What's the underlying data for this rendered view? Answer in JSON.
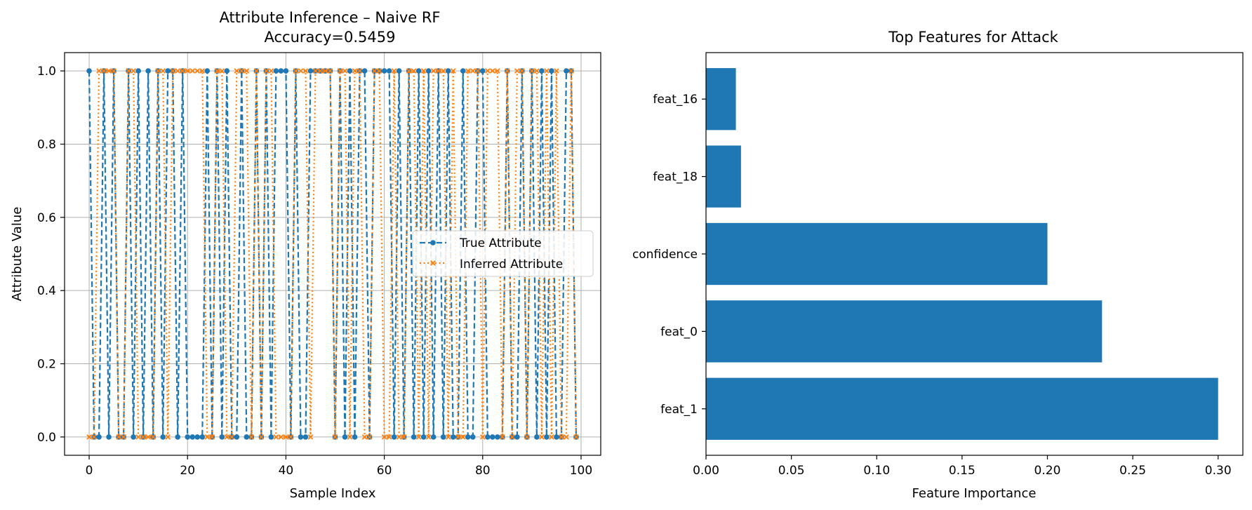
{
  "chart_data": [
    {
      "type": "line",
      "title": "Attribute Inference – Naive RF",
      "subtitle": "Accuracy=0.5459",
      "xlabel": "Sample Index",
      "ylabel": "Attribute Value",
      "xlim": [
        -5,
        104
      ],
      "ylim": [
        -0.05,
        1.05
      ],
      "xticks": [
        0,
        20,
        40,
        60,
        80,
        100
      ],
      "yticks": [
        0.0,
        0.2,
        0.4,
        0.6,
        0.8,
        1.0
      ],
      "grid": true,
      "legend_position": "center-right",
      "series": [
        {
          "name": "True Attribute",
          "color": "#1f77b4",
          "linestyle": "dashed",
          "marker": "circle",
          "values": [
            1,
            0,
            0,
            1,
            0,
            1,
            0,
            0,
            1,
            0,
            1,
            0,
            1,
            0,
            1,
            0,
            1,
            1,
            0,
            1,
            0,
            0,
            0,
            0,
            1,
            0,
            1,
            0,
            1,
            0,
            0,
            1,
            0,
            0,
            1,
            0,
            1,
            0,
            1,
            1,
            1,
            0,
            1,
            0,
            0,
            1,
            1,
            1,
            1,
            1,
            0,
            1,
            0,
            1,
            0,
            1,
            1,
            0,
            1,
            1,
            1,
            1,
            0,
            1,
            0,
            1,
            0,
            1,
            0,
            1,
            0,
            1,
            0,
            1,
            0,
            0,
            1,
            0,
            0,
            1,
            1,
            0,
            0,
            0,
            0,
            1,
            0,
            0,
            1,
            0,
            1,
            0,
            1,
            0,
            1,
            0,
            0,
            1,
            1,
            0
          ]
        },
        {
          "name": "Inferred Attribute",
          "color": "#ff7f0e",
          "linestyle": "dotted",
          "marker": "x",
          "values": [
            0,
            0,
            1,
            1,
            1,
            1,
            0,
            0,
            1,
            1,
            0,
            0,
            0,
            0,
            1,
            1,
            0,
            1,
            1,
            1,
            1,
            1,
            1,
            1,
            0,
            0,
            1,
            1,
            0,
            0,
            1,
            1,
            1,
            0,
            1,
            0,
            1,
            1,
            0,
            0,
            0,
            0,
            1,
            1,
            1,
            0,
            1,
            1,
            1,
            1,
            0,
            1,
            1,
            0,
            1,
            1,
            0,
            0,
            1,
            1,
            0,
            0,
            1,
            0,
            0,
            1,
            1,
            0,
            1,
            0,
            1,
            1,
            1,
            0,
            1,
            0,
            0,
            1,
            1,
            1,
            0,
            1,
            1,
            1,
            0,
            1,
            0,
            1,
            1,
            0,
            1,
            1,
            0,
            1,
            0,
            1,
            0,
            0,
            1,
            0
          ]
        }
      ]
    },
    {
      "type": "bar",
      "orientation": "horizontal",
      "title": "Top Features for Attack",
      "xlabel": "Feature Importance",
      "ylabel": "",
      "xlim": [
        0,
        0.3145
      ],
      "xticks": [
        "0.00",
        "0.05",
        "0.10",
        "0.15",
        "0.20",
        "0.25",
        "0.30"
      ],
      "grid": false,
      "categories": [
        "feat_1",
        "feat_0",
        "confidence",
        "feat_18",
        "feat_16"
      ],
      "values": [
        0.3,
        0.232,
        0.2,
        0.0205,
        0.0175
      ],
      "color": "#1f77b4"
    }
  ]
}
